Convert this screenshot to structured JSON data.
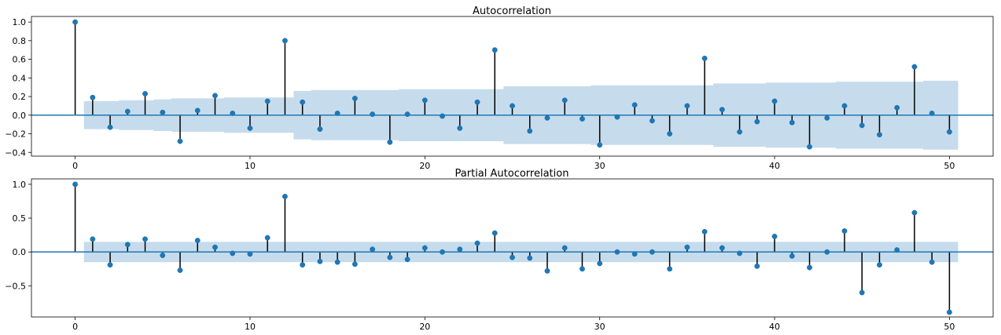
{
  "chart_data": [
    {
      "type": "stem",
      "title": "Autocorrelation",
      "xlim": [
        -2.5,
        52.5
      ],
      "ylim": [
        -0.44,
        1.06
      ],
      "xticks": [
        0,
        10,
        20,
        30,
        40,
        50
      ],
      "yticks": [
        -0.4,
        -0.2,
        0.0,
        0.2,
        0.4,
        0.6,
        0.8,
        1.0
      ],
      "ytick_labels": [
        "−0.4",
        "−0.2",
        "0.0",
        "0.2",
        "0.4",
        "0.6",
        "0.8",
        "1.0"
      ],
      "xtick_labels": [
        "0",
        "10",
        "20",
        "30",
        "40",
        "50"
      ],
      "lags": [
        0,
        1,
        2,
        3,
        4,
        5,
        6,
        7,
        8,
        9,
        10,
        11,
        12,
        13,
        14,
        15,
        16,
        17,
        18,
        19,
        20,
        21,
        22,
        23,
        24,
        25,
        26,
        27,
        28,
        29,
        30,
        31,
        32,
        33,
        34,
        35,
        36,
        37,
        38,
        39,
        40,
        41,
        42,
        43,
        44,
        45,
        46,
        47,
        48,
        49,
        50
      ],
      "values": [
        1.0,
        0.19,
        -0.13,
        0.04,
        0.23,
        0.03,
        -0.28,
        0.05,
        0.21,
        0.02,
        -0.14,
        0.15,
        0.8,
        0.14,
        -0.15,
        0.02,
        0.18,
        0.01,
        -0.29,
        0.01,
        0.16,
        -0.01,
        -0.14,
        0.14,
        0.7,
        0.1,
        -0.17,
        -0.03,
        0.16,
        -0.04,
        -0.32,
        -0.02,
        0.11,
        -0.06,
        -0.2,
        0.1,
        0.61,
        0.06,
        -0.18,
        -0.07,
        0.15,
        -0.08,
        -0.34,
        -0.03,
        0.1,
        -0.11,
        -0.21,
        0.08,
        0.52,
        0.02,
        -0.18
      ],
      "conf_lower": [
        -0.15,
        -0.15,
        -0.15,
        -0.16,
        -0.16,
        -0.17,
        -0.18,
        -0.18,
        -0.18,
        -0.19,
        -0.19,
        -0.19,
        -0.19,
        -0.26,
        -0.27,
        -0.27,
        -0.27,
        -0.27,
        -0.27,
        -0.28,
        -0.28,
        -0.28,
        -0.28,
        -0.28,
        -0.28,
        -0.31,
        -0.31,
        -0.31,
        -0.31,
        -0.31,
        -0.32,
        -0.32,
        -0.32,
        -0.32,
        -0.32,
        -0.32,
        -0.32,
        -0.34,
        -0.34,
        -0.34,
        -0.35,
        -0.35,
        -0.35,
        -0.35,
        -0.36,
        -0.36,
        -0.36,
        -0.36,
        -0.36,
        -0.37,
        -0.37
      ],
      "conf_upper": [
        0.15,
        0.15,
        0.15,
        0.16,
        0.16,
        0.17,
        0.18,
        0.18,
        0.18,
        0.19,
        0.19,
        0.19,
        0.19,
        0.26,
        0.27,
        0.27,
        0.27,
        0.27,
        0.27,
        0.28,
        0.28,
        0.28,
        0.28,
        0.28,
        0.28,
        0.31,
        0.31,
        0.31,
        0.31,
        0.31,
        0.32,
        0.32,
        0.32,
        0.32,
        0.32,
        0.32,
        0.32,
        0.34,
        0.34,
        0.34,
        0.35,
        0.35,
        0.35,
        0.35,
        0.36,
        0.36,
        0.36,
        0.36,
        0.36,
        0.37,
        0.37
      ],
      "colors": {
        "marker": "#1f77b4",
        "stem": "#000000",
        "band": "#b8d3e8",
        "zero_line": "#1f77b4"
      }
    },
    {
      "type": "stem",
      "title": "Partial Autocorrelation",
      "xlim": [
        -2.5,
        52.5
      ],
      "ylim": [
        -0.96,
        1.08
      ],
      "xticks": [
        0,
        10,
        20,
        30,
        40,
        50
      ],
      "yticks": [
        -0.5,
        0.0,
        0.5,
        1.0
      ],
      "ytick_labels": [
        "−0.5",
        "0.0",
        "0.5",
        "1.0"
      ],
      "xtick_labels": [
        "0",
        "10",
        "20",
        "30",
        "40",
        "50"
      ],
      "lags": [
        0,
        1,
        2,
        3,
        4,
        5,
        6,
        7,
        8,
        9,
        10,
        11,
        12,
        13,
        14,
        15,
        16,
        17,
        18,
        19,
        20,
        21,
        22,
        23,
        24,
        25,
        26,
        27,
        28,
        29,
        30,
        31,
        32,
        33,
        34,
        35,
        36,
        37,
        38,
        39,
        40,
        41,
        42,
        43,
        44,
        45,
        46,
        47,
        48,
        49,
        50
      ],
      "values": [
        1.0,
        0.19,
        -0.19,
        0.11,
        0.19,
        -0.05,
        -0.27,
        0.17,
        0.07,
        -0.02,
        -0.03,
        0.21,
        0.82,
        -0.19,
        -0.14,
        -0.15,
        -0.18,
        0.04,
        -0.08,
        -0.11,
        0.06,
        0.0,
        0.04,
        0.13,
        0.28,
        -0.08,
        -0.09,
        -0.28,
        0.06,
        -0.25,
        -0.17,
        0.0,
        -0.03,
        0.0,
        -0.25,
        0.07,
        0.3,
        0.06,
        -0.02,
        -0.21,
        0.23,
        -0.06,
        -0.23,
        0.0,
        0.31,
        -0.6,
        -0.19,
        0.03,
        0.58,
        -0.15,
        -0.89
      ],
      "conf_lower": [
        -0.15,
        -0.15,
        -0.15,
        -0.15,
        -0.15,
        -0.15,
        -0.15,
        -0.15,
        -0.15,
        -0.15,
        -0.15,
        -0.15,
        -0.15,
        -0.15,
        -0.15,
        -0.15,
        -0.15,
        -0.15,
        -0.15,
        -0.15,
        -0.15,
        -0.15,
        -0.15,
        -0.15,
        -0.15,
        -0.15,
        -0.15,
        -0.15,
        -0.15,
        -0.15,
        -0.15,
        -0.15,
        -0.15,
        -0.15,
        -0.15,
        -0.15,
        -0.15,
        -0.15,
        -0.15,
        -0.15,
        -0.15,
        -0.15,
        -0.15,
        -0.15,
        -0.15,
        -0.15,
        -0.15,
        -0.15,
        -0.15,
        -0.15,
        -0.15
      ],
      "conf_upper": [
        0.15,
        0.15,
        0.15,
        0.15,
        0.15,
        0.15,
        0.15,
        0.15,
        0.15,
        0.15,
        0.15,
        0.15,
        0.15,
        0.15,
        0.15,
        0.15,
        0.15,
        0.15,
        0.15,
        0.15,
        0.15,
        0.15,
        0.15,
        0.15,
        0.15,
        0.15,
        0.15,
        0.15,
        0.15,
        0.15,
        0.15,
        0.15,
        0.15,
        0.15,
        0.15,
        0.15,
        0.15,
        0.15,
        0.15,
        0.15,
        0.15,
        0.15,
        0.15,
        0.15,
        0.15,
        0.15,
        0.15,
        0.15,
        0.15,
        0.15,
        0.15
      ],
      "colors": {
        "marker": "#1f77b4",
        "stem": "#000000",
        "band": "#b8d3e8",
        "zero_line": "#1f77b4"
      }
    }
  ]
}
